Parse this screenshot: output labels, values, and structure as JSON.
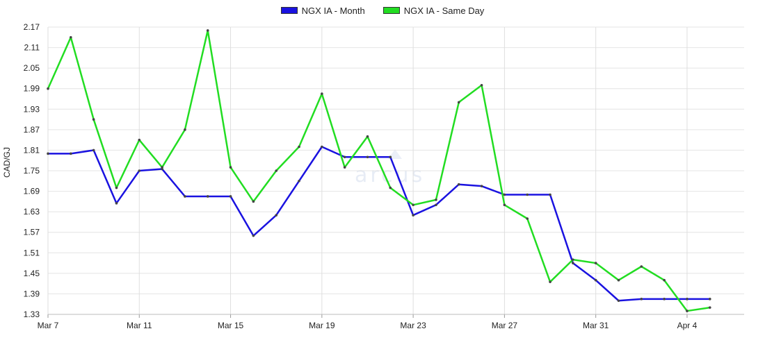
{
  "chart_data": {
    "type": "line",
    "ylabel": "CAD/GJ",
    "ylim": [
      1.33,
      2.17
    ],
    "yticks": [
      "1.33",
      "1.39",
      "1.45",
      "1.51",
      "1.57",
      "1.63",
      "1.69",
      "1.75",
      "1.81",
      "1.87",
      "1.93",
      "1.99",
      "2.05",
      "2.11",
      "2.17"
    ],
    "xticks": [
      {
        "label": "Mar 7",
        "day": 7
      },
      {
        "label": "Mar 11",
        "day": 11
      },
      {
        "label": "Mar 15",
        "day": 15
      },
      {
        "label": "Mar 19",
        "day": 19
      },
      {
        "label": "Mar 23",
        "day": 23
      },
      {
        "label": "Mar 27",
        "day": 27
      },
      {
        "label": "Mar 31",
        "day": 31
      },
      {
        "label": "Apr 4",
        "day": 35
      }
    ],
    "x": [
      7,
      8,
      9,
      10,
      11,
      12,
      13,
      14,
      15,
      16,
      17,
      18,
      19,
      20,
      21,
      22,
      23,
      24,
      25,
      26,
      27,
      28,
      29,
      30,
      31,
      32,
      33,
      34,
      35,
      36
    ],
    "grid": true,
    "legend": "top-center",
    "series": [
      {
        "name": "NGX IA - Month",
        "color": "#1a12e0",
        "values": [
          1.8,
          1.8,
          1.81,
          1.655,
          1.75,
          1.755,
          1.675,
          1.675,
          1.675,
          1.56,
          1.62,
          1.72,
          1.82,
          1.79,
          1.79,
          1.79,
          1.62,
          1.65,
          1.71,
          1.705,
          1.68,
          1.68,
          1.68,
          1.48,
          1.43,
          1.37,
          1.375,
          1.375,
          1.375,
          1.375
        ]
      },
      {
        "name": "NGX IA - Same Day",
        "color": "#22dd22",
        "values": [
          1.99,
          2.14,
          1.9,
          1.7,
          1.84,
          1.76,
          1.87,
          2.16,
          1.76,
          1.66,
          1.75,
          1.82,
          1.975,
          1.76,
          1.85,
          1.7,
          1.65,
          1.665,
          1.95,
          2.0,
          1.65,
          1.61,
          1.425,
          1.49,
          1.48,
          1.43,
          1.47,
          1.43,
          1.34,
          1.35
        ]
      }
    ]
  },
  "watermark": {
    "text": "arcus"
  }
}
